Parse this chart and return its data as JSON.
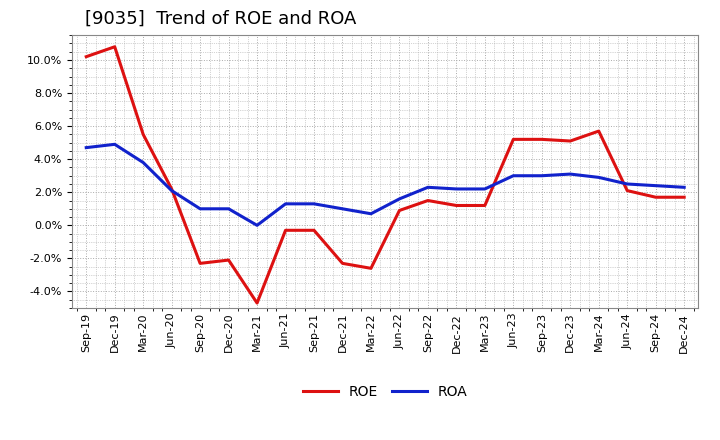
{
  "title": "[9035]  Trend of ROE and ROA",
  "x_labels": [
    "Sep-19",
    "Dec-19",
    "Mar-20",
    "Jun-20",
    "Sep-20",
    "Dec-20",
    "Mar-21",
    "Jun-21",
    "Sep-21",
    "Dec-21",
    "Mar-22",
    "Jun-22",
    "Sep-22",
    "Dec-22",
    "Mar-23",
    "Jun-23",
    "Sep-23",
    "Dec-23",
    "Mar-24",
    "Jun-24",
    "Sep-24",
    "Dec-24"
  ],
  "roe": [
    10.2,
    10.8,
    5.5,
    2.2,
    -2.3,
    -2.1,
    -4.7,
    -0.3,
    -0.3,
    -2.3,
    -2.6,
    0.9,
    1.5,
    1.2,
    1.2,
    5.2,
    5.2,
    5.1,
    5.7,
    2.1,
    1.7,
    1.7
  ],
  "roa": [
    4.7,
    4.9,
    3.8,
    2.1,
    1.0,
    1.0,
    0.0,
    1.3,
    1.3,
    1.0,
    0.7,
    1.6,
    2.3,
    2.2,
    2.2,
    3.0,
    3.0,
    3.1,
    2.9,
    2.5,
    2.4,
    2.3
  ],
  "roe_color": "#dd1111",
  "roa_color": "#1122cc",
  "ylim": [
    -5.0,
    11.5
  ],
  "yticks": [
    -4.0,
    -2.0,
    0.0,
    2.0,
    4.0,
    6.0,
    8.0,
    10.0
  ],
  "background_color": "#ffffff",
  "plot_bg_color": "#ffffff",
  "grid_color": "#aaaaaa",
  "title_fontsize": 13,
  "legend_fontsize": 10,
  "tick_fontsize": 8,
  "line_width": 2.2
}
